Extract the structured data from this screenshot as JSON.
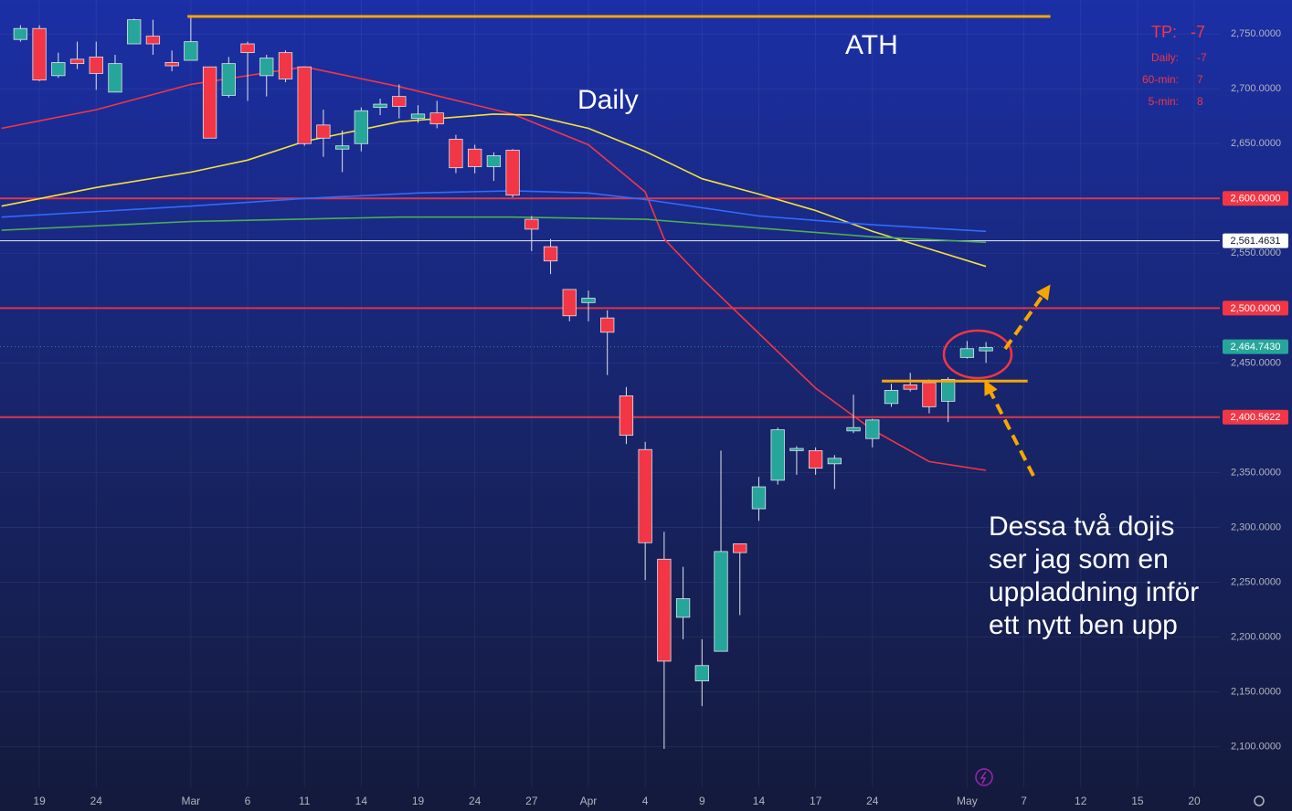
{
  "chart_data": {
    "type": "candlestick",
    "ylim": [
      2063,
      2781
    ],
    "xlim": [
      -1.08,
      63.35
    ],
    "yticks": [
      {
        "value": 2100,
        "label": "2,100.0000"
      },
      {
        "value": 2150,
        "label": "2,150.0000"
      },
      {
        "value": 2200,
        "label": "2,200.0000"
      },
      {
        "value": 2250,
        "label": "2,250.0000"
      },
      {
        "value": 2300,
        "label": "2,300.0000"
      },
      {
        "value": 2350,
        "label": "2,350.0000"
      },
      {
        "value": 2400,
        "label": "2,400.0000"
      },
      {
        "value": 2450,
        "label": "2,450.0000"
      },
      {
        "value": 2500,
        "label": "2,500.0000"
      },
      {
        "value": 2550,
        "label": "2,550.0000"
      },
      {
        "value": 2600,
        "label": "2,600.0000"
      },
      {
        "value": 2650,
        "label": "2,650.0000"
      },
      {
        "value": 2700,
        "label": "2,700.0000"
      },
      {
        "value": 2750,
        "label": "2,750.0000"
      }
    ],
    "xticks": [
      {
        "value": 1,
        "label": "19"
      },
      {
        "value": 4,
        "label": "24"
      },
      {
        "value": 9,
        "label": "Mar"
      },
      {
        "value": 12,
        "label": "6"
      },
      {
        "value": 15,
        "label": "11"
      },
      {
        "value": 18,
        "label": "14"
      },
      {
        "value": 21,
        "label": "19"
      },
      {
        "value": 24,
        "label": "24"
      },
      {
        "value": 27,
        "label": "27"
      },
      {
        "value": 30,
        "label": "Apr"
      },
      {
        "value": 33,
        "label": "4"
      },
      {
        "value": 36,
        "label": "9"
      },
      {
        "value": 39,
        "label": "14"
      },
      {
        "value": 42,
        "label": "17"
      },
      {
        "value": 45,
        "label": "24"
      },
      {
        "value": 50,
        "label": "May"
      },
      {
        "value": 53,
        "label": "7"
      },
      {
        "value": 56,
        "label": "12"
      },
      {
        "value": 59,
        "label": "15"
      },
      {
        "value": 62,
        "label": "20"
      }
    ],
    "grid": true,
    "up_color": "#26a69a",
    "down_color": "#f23645",
    "x": [
      0,
      1,
      2,
      3,
      4,
      5,
      6,
      7,
      8,
      9,
      10,
      11,
      12,
      13,
      14,
      15,
      16,
      17,
      18,
      19,
      20,
      21,
      22,
      23,
      24,
      25,
      26,
      27,
      28,
      29,
      30,
      31,
      32,
      33,
      34,
      35,
      36,
      37,
      38,
      39,
      40,
      41,
      42,
      43,
      44,
      45,
      46,
      47,
      48,
      49,
      50,
      51
    ],
    "open": [
      2745,
      2755,
      2712,
      2727,
      2729,
      2697,
      2741,
      2748,
      2724,
      2726,
      2720,
      2694,
      2741,
      2712,
      2733,
      2720,
      2667,
      2645,
      2650,
      2683,
      2693,
      2673,
      2678,
      2654,
      2645,
      2629,
      2644,
      2581,
      2556,
      2517,
      2505,
      2491,
      2420,
      2371,
      2271,
      2218,
      2160,
      2187,
      2285,
      2317,
      2343,
      2370,
      2370,
      2358,
      2388,
      2381,
      2413,
      2430,
      2432,
      2415,
      2455,
      2461
    ],
    "high": [
      2758,
      2758,
      2733,
      2743,
      2743,
      2731,
      2764,
      2763,
      2735,
      2766,
      2720,
      2729,
      2743,
      2731,
      2735,
      2720,
      2681,
      2662,
      2683,
      2691,
      2704,
      2685,
      2689,
      2658,
      2649,
      2642,
      2645,
      2584,
      2563,
      2517,
      2516,
      2498,
      2428,
      2378,
      2296,
      2264,
      2198,
      2370,
      2285,
      2346,
      2391,
      2374,
      2373,
      2366,
      2421,
      2399,
      2431,
      2441,
      2435,
      2437,
      2470,
      2469
    ],
    "low": [
      2743,
      2707,
      2710,
      2718,
      2699,
      2697,
      2741,
      2731,
      2716,
      2726,
      2655,
      2692,
      2689,
      2693,
      2706,
      2648,
      2638,
      2624,
      2643,
      2676,
      2673,
      2669,
      2664,
      2623,
      2623,
      2616,
      2601,
      2552,
      2531,
      2488,
      2488,
      2439,
      2376,
      2252,
      2098,
      2198,
      2137,
      2187,
      2220,
      2306,
      2339,
      2348,
      2348,
      2335,
      2386,
      2373,
      2410,
      2424,
      2404,
      2396,
      2454,
      2450
    ],
    "close": [
      2755,
      2708,
      2724,
      2723,
      2714,
      2723,
      2763,
      2741,
      2721,
      2743,
      2655,
      2723,
      2733,
      2728,
      2709,
      2650,
      2655,
      2648,
      2680,
      2686,
      2684,
      2677,
      2668,
      2628,
      2629,
      2639,
      2603,
      2572,
      2543,
      2493,
      2509,
      2478,
      2384,
      2286,
      2178,
      2235,
      2174,
      2278,
      2277,
      2337,
      2389,
      2372,
      2354,
      2363,
      2391,
      2398,
      2425,
      2426,
      2410,
      2435,
      2463,
      2464
    ],
    "lines": [
      {
        "color": "#f23645",
        "x": [
          -1,
          4,
          9,
          15,
          20,
          26,
          30,
          33,
          34,
          36,
          39,
          42,
          45,
          48,
          51
        ],
        "values": [
          2664,
          2681,
          2704,
          2720,
          2702,
          2677,
          2649,
          2606,
          2563,
          2527,
          2477,
          2427,
          2389,
          2360,
          2352
        ]
      },
      {
        "color": "#f5e23a",
        "x": [
          -1,
          4,
          9,
          12,
          15,
          20,
          25,
          27,
          30,
          33,
          36,
          39,
          42,
          45,
          48,
          51
        ],
        "values": [
          2593,
          2610,
          2624,
          2635,
          2652,
          2670,
          2677,
          2676,
          2664,
          2643,
          2618,
          2604,
          2589,
          2570,
          2554,
          2538
        ]
      },
      {
        "color": "#2f6bff",
        "x": [
          -1,
          9,
          15,
          21,
          26,
          30,
          33,
          39,
          45,
          51
        ],
        "values": [
          2583,
          2593,
          2600,
          2605,
          2607,
          2605,
          2599,
          2584,
          2576,
          2570
        ]
      },
      {
        "color": "#4caf50",
        "x": [
          -1,
          9,
          20,
          26,
          33,
          39,
          45,
          51
        ],
        "values": [
          2571,
          2579,
          2583,
          2583,
          2581,
          2573,
          2565,
          2560
        ]
      }
    ],
    "levels": [
      {
        "value": 2600,
        "label": "2,600.0000",
        "color": "#f23645"
      },
      {
        "value": 2500,
        "label": "2,500.0000",
        "color": "#f23645"
      },
      {
        "value": 2400.5622,
        "label": "2,400.5622",
        "color": "#f23645"
      },
      {
        "value": 2561.4631,
        "label": "2,561.4631",
        "color": "#ffffff"
      },
      {
        "value": 2464.743,
        "label": "2,464.7430",
        "color": "#26a69a"
      }
    ],
    "trend_lines": [
      {
        "color": "#f7a600",
        "value": 2766,
        "x": [
          8.82,
          54.4
        ]
      },
      {
        "color": "#f7a600",
        "value": 2433.5,
        "x": [
          45.5,
          53.2
        ]
      }
    ],
    "annotations": {
      "ath": "ATH",
      "timeframe": "Daily",
      "comment": [
        "Dessa två dojis",
        "ser jag som en",
        "uppladdning inför",
        "ett nytt ben upp"
      ]
    },
    "info": [
      {
        "label": "TP:",
        "value": -7
      },
      {
        "label": "Daily:",
        "value": -7
      },
      {
        "label": "60-min:",
        "value": 7
      },
      {
        "label": "5-min:",
        "value": 8
      }
    ]
  }
}
